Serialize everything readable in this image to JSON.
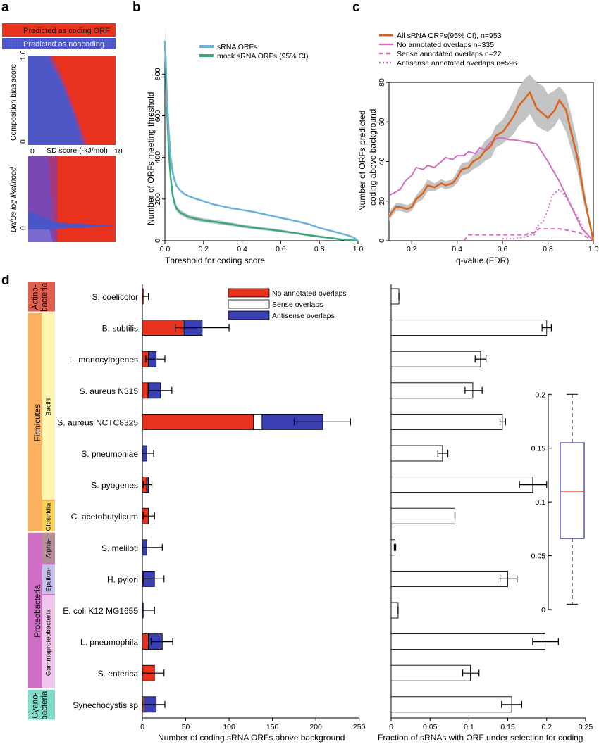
{
  "panels": {
    "a": {
      "label": "a",
      "legend": [
        {
          "text": "Predicted as coding ORF",
          "color": "#e8321e"
        },
        {
          "text": "Predicted as noncoding",
          "color": "#4a55c8"
        }
      ],
      "top_heatmap": {
        "ylabel": "Composition bias score",
        "yticks": [
          "1.0",
          "0"
        ],
        "xlabel": "SD score (-kJ/mol)",
        "xticks": [
          "0",
          "18"
        ]
      },
      "bottom_heatmap": {
        "ylabel": "Dn/Ds log likelihood",
        "yticks": [
          "0"
        ]
      }
    },
    "b": {
      "label": "b"
    },
    "c": {
      "label": "c"
    },
    "d": {
      "label": "d"
    }
  },
  "chart_data": [
    {
      "id": "b",
      "type": "line",
      "xlabel": "Threshold for coding score",
      "ylabel": "Number of ORFs meeting threshold",
      "xlim": [
        0,
        1
      ],
      "ylim": [
        0,
        960
      ],
      "xticks": [
        "0.0",
        "0.2",
        "0.4",
        "0.6",
        "0.8",
        "1.0"
      ],
      "yticks": [
        "0",
        "200",
        "400",
        "600",
        "800"
      ],
      "legend_position": "top-right",
      "series": [
        {
          "name": "sRNA ORFs",
          "color": "#6ab3d6",
          "x": [
            0,
            0.005,
            0.01,
            0.02,
            0.03,
            0.04,
            0.05,
            0.06,
            0.08,
            0.1,
            0.12,
            0.15,
            0.2,
            0.25,
            0.3,
            0.35,
            0.4,
            0.45,
            0.5,
            0.55,
            0.6,
            0.65,
            0.7,
            0.75,
            0.8,
            0.85,
            0.9,
            0.95,
            0.98,
            1.0
          ],
          "y": [
            960,
            850,
            700,
            520,
            400,
            330,
            290,
            265,
            240,
            225,
            215,
            205,
            190,
            175,
            165,
            155,
            148,
            140,
            130,
            120,
            110,
            100,
            90,
            78,
            62,
            50,
            38,
            25,
            15,
            0
          ]
        },
        {
          "name": "mock sRNA ORFs (95% CI)",
          "color": "#3aaa7a",
          "x": [
            0,
            0.005,
            0.01,
            0.02,
            0.03,
            0.04,
            0.05,
            0.06,
            0.08,
            0.1,
            0.12,
            0.15,
            0.2,
            0.25,
            0.3,
            0.35,
            0.4,
            0.45,
            0.5,
            0.55,
            0.6,
            0.65,
            0.7,
            0.75,
            0.8,
            0.85,
            0.9,
            0.95,
            1.0
          ],
          "y": [
            960,
            820,
            650,
            430,
            300,
            220,
            180,
            155,
            135,
            125,
            115,
            108,
            98,
            92,
            85,
            78,
            70,
            64,
            58,
            53,
            47,
            40,
            33,
            26,
            20,
            14,
            8,
            3,
            0
          ]
        }
      ]
    },
    {
      "id": "c",
      "type": "line",
      "xlabel": "q-value (FDR)",
      "ylabel": "Number of ORFs predicted coding above background",
      "xlim": [
        0.1,
        1
      ],
      "ylim": [
        0,
        80
      ],
      "xticks": [
        "0.2",
        "0.4",
        "0.6",
        "0.8",
        "1.0"
      ],
      "yticks": [
        "0",
        "20",
        "40",
        "60",
        "80"
      ],
      "legend_position": "top",
      "series": [
        {
          "name": "All sRNA ORFs(95% CI), n=953",
          "color": "#d9641e",
          "style": "solid",
          "x": [
            0.1,
            0.11,
            0.13,
            0.15,
            0.18,
            0.2,
            0.22,
            0.25,
            0.27,
            0.3,
            0.33,
            0.35,
            0.38,
            0.4,
            0.42,
            0.45,
            0.47,
            0.5,
            0.52,
            0.55,
            0.57,
            0.6,
            0.62,
            0.65,
            0.67,
            0.7,
            0.72,
            0.75,
            0.78,
            0.8,
            0.83,
            0.85,
            0.88,
            0.9,
            0.93,
            0.96,
            1.0
          ],
          "y": [
            12,
            14,
            17,
            17,
            16,
            17,
            21,
            24,
            28,
            27,
            29,
            28,
            29,
            32,
            36,
            37,
            40,
            42,
            45,
            48,
            53,
            55,
            58,
            63,
            68,
            72,
            75,
            67,
            64,
            62,
            66,
            71,
            66,
            56,
            42,
            22,
            0
          ],
          "ci_low": [
            10,
            12,
            15,
            15,
            14,
            15,
            19,
            21,
            25,
            25,
            27,
            26,
            27,
            29,
            33,
            34,
            36,
            38,
            40,
            42,
            47,
            49,
            51,
            54,
            58,
            61,
            64,
            58,
            56,
            55,
            58,
            62,
            55,
            47,
            35,
            18,
            0
          ],
          "ci_high": [
            14,
            16,
            19,
            19,
            18,
            19,
            23,
            27,
            31,
            29,
            31,
            30,
            31,
            35,
            39,
            40,
            43,
            46,
            50,
            53,
            58,
            61,
            65,
            71,
            77,
            82,
            84,
            80,
            78,
            74,
            76,
            78,
            74,
            65,
            50,
            26,
            0
          ]
        },
        {
          "name": "No annotated overlaps n=335",
          "color": "#d46ec0",
          "style": "solid",
          "x": [
            0.1,
            0.12,
            0.15,
            0.17,
            0.2,
            0.22,
            0.25,
            0.27,
            0.3,
            0.33,
            0.35,
            0.38,
            0.4,
            0.43,
            0.45,
            0.48,
            0.5,
            0.52,
            0.55,
            0.58,
            0.6,
            0.63,
            0.65,
            0.7,
            0.75,
            0.8,
            0.85,
            0.9,
            0.95,
            1.0
          ],
          "y": [
            23,
            24,
            26,
            30,
            33,
            37,
            36,
            38,
            37,
            40,
            42,
            41,
            43,
            43,
            45,
            44,
            47,
            46,
            50,
            52,
            52,
            51,
            51,
            50,
            49,
            40,
            30,
            18,
            6,
            0
          ]
        },
        {
          "name": "Sense annotated overlaps n=22",
          "color": "#d46ec0",
          "style": "dashed",
          "x": [
            0.43,
            0.45,
            0.5,
            0.55,
            0.6,
            0.65,
            0.7,
            0.72,
            0.74,
            0.76,
            0.8,
            0.85,
            0.9,
            0.94,
            0.97,
            1.0
          ],
          "y": [
            0,
            3,
            3,
            3,
            3,
            3,
            3,
            4,
            4,
            6,
            6,
            6,
            5,
            4,
            2,
            0
          ]
        },
        {
          "name": "Antisense annotated overlaps n=596",
          "color": "#d46ec0",
          "style": "dotted",
          "x": [
            0.6,
            0.65,
            0.7,
            0.72,
            0.74,
            0.75,
            0.76,
            0.78,
            0.8,
            0.82,
            0.85,
            0.88,
            0.9,
            0.93,
            0.96,
            1.0
          ],
          "y": [
            1,
            1,
            2,
            3,
            3,
            7,
            8,
            10,
            16,
            23,
            26,
            22,
            18,
            12,
            5,
            0
          ]
        }
      ]
    },
    {
      "id": "d-left",
      "type": "bar",
      "orientation": "horizontal",
      "stacked": true,
      "xlabel": "Number of coding sRNA ORFs above background",
      "xlim": [
        0,
        260
      ],
      "xticks": [
        "0",
        "50",
        "100",
        "150",
        "200",
        "250"
      ],
      "legend_position": "top",
      "categories": [
        "S. coelicolor",
        "B. subtilis",
        "L. monocytogenes",
        "S. aureus N315",
        "S. aureus NCTC8325",
        "S. pneumoniae",
        "S. pyogenes",
        "C. acetobutylicum",
        "S. meliloti",
        "H. pylori",
        "E. coli K12 MG1655",
        "L. pneumophila",
        "S. enterica",
        "Synechocystis sp"
      ],
      "series": [
        {
          "name": "No annotated overlaps",
          "color": "#e8321e",
          "values": [
            1,
            47,
            7,
            6,
            128,
            0,
            5,
            7,
            0,
            1,
            0,
            7,
            14,
            2
          ]
        },
        {
          "name": "Sense overlaps",
          "color": "#ffffff",
          "values": [
            0,
            1,
            0,
            1,
            10,
            0,
            0,
            0,
            0,
            0,
            0,
            0,
            0,
            0
          ]
        },
        {
          "name": "Antisense overlaps",
          "color": "#3b3fb4",
          "values": [
            0,
            21,
            9,
            14,
            70,
            5,
            2,
            0,
            5,
            13,
            1,
            16,
            0,
            14
          ]
        }
      ],
      "error_bars": [
        [
          0,
          7
        ],
        [
          38,
          100
        ],
        [
          4,
          26
        ],
        [
          7,
          34
        ],
        [
          175,
          240
        ],
        [
          0,
          13
        ],
        [
          1,
          11
        ],
        [
          1,
          14
        ],
        [
          0,
          23
        ],
        [
          1,
          25
        ],
        [
          0,
          14
        ],
        [
          10,
          35
        ],
        [
          0,
          25
        ],
        [
          0,
          26
        ]
      ]
    },
    {
      "id": "d-right",
      "type": "bar",
      "orientation": "horizontal",
      "xlabel": "Fraction of sRNAs with ORF under selection for coding",
      "xlim": [
        0,
        0.26
      ],
      "xticks": [
        "0",
        "0.05",
        "0.1",
        "0.15",
        "0.2",
        "0.25"
      ],
      "categories": [
        "S. coelicolor",
        "B. subtilis",
        "L. monocytogenes",
        "S. aureus N315",
        "S. aureus NCTC8325",
        "S. pneumoniae",
        "S. pyogenes",
        "C. acetobutylicum",
        "S. meliloti",
        "H. pylori",
        "E. coli K12 MG1655",
        "L. pneumophila",
        "S. enterica",
        "Synechocystis sp"
      ],
      "values": [
        0.01,
        0.2,
        0.115,
        0.105,
        0.143,
        0.066,
        0.182,
        0.082,
        0.005,
        0.15,
        0.009,
        0.198,
        0.102,
        0.155
      ],
      "error_bars": [
        [
          0.01,
          0.01
        ],
        [
          0.194,
          0.206
        ],
        [
          0.108,
          0.122
        ],
        [
          0.095,
          0.117
        ],
        [
          0.14,
          0.147
        ],
        [
          0.06,
          0.073
        ],
        [
          0.165,
          0.2
        ],
        [
          0.082,
          0.082
        ],
        [
          0.004,
          0.006
        ],
        [
          0.14,
          0.162
        ],
        [
          0.009,
          0.009
        ],
        [
          0.182,
          0.215
        ],
        [
          0.092,
          0.113
        ],
        [
          0.142,
          0.168
        ]
      ]
    },
    {
      "id": "d-box",
      "type": "box",
      "ylim": [
        0,
        0.21
      ],
      "yticks": [
        "0",
        "0.05",
        "0.1",
        "0.15",
        "0.2"
      ],
      "stats": {
        "min": 0.005,
        "q1": 0.066,
        "median": 0.11,
        "q3": 0.155,
        "max": 0.2
      }
    }
  ],
  "taxonomy": [
    {
      "name": "Actino-\nbacteria",
      "color": "#e06050",
      "rows": [
        0,
        0
      ]
    },
    {
      "name": "Firmicutes",
      "color": "#fbb060",
      "rows": [
        1,
        7
      ],
      "sub": [
        {
          "name": "Bacilli",
          "color": "#fef6b0",
          "rows": [
            1,
            6
          ]
        },
        {
          "name": "Clostridia",
          "color": "#f7d25a",
          "rows": [
            7,
            7
          ]
        }
      ]
    },
    {
      "name": "Proteobacteria",
      "color": "#d06ec8",
      "rows": [
        8,
        12
      ],
      "sub": [
        {
          "name": "Alpha-",
          "color": "#b48e98",
          "rows": [
            8,
            8
          ]
        },
        {
          "name": "Epsilon-",
          "color": "#c8c0e8",
          "rows": [
            9,
            9
          ]
        },
        {
          "name": "Gammaproteobacteria",
          "color": "#f0c6ec",
          "rows": [
            10,
            12
          ]
        }
      ]
    },
    {
      "name": "Cyano-\nbacteria",
      "color": "#80dcc8",
      "rows": [
        13,
        13
      ]
    }
  ]
}
